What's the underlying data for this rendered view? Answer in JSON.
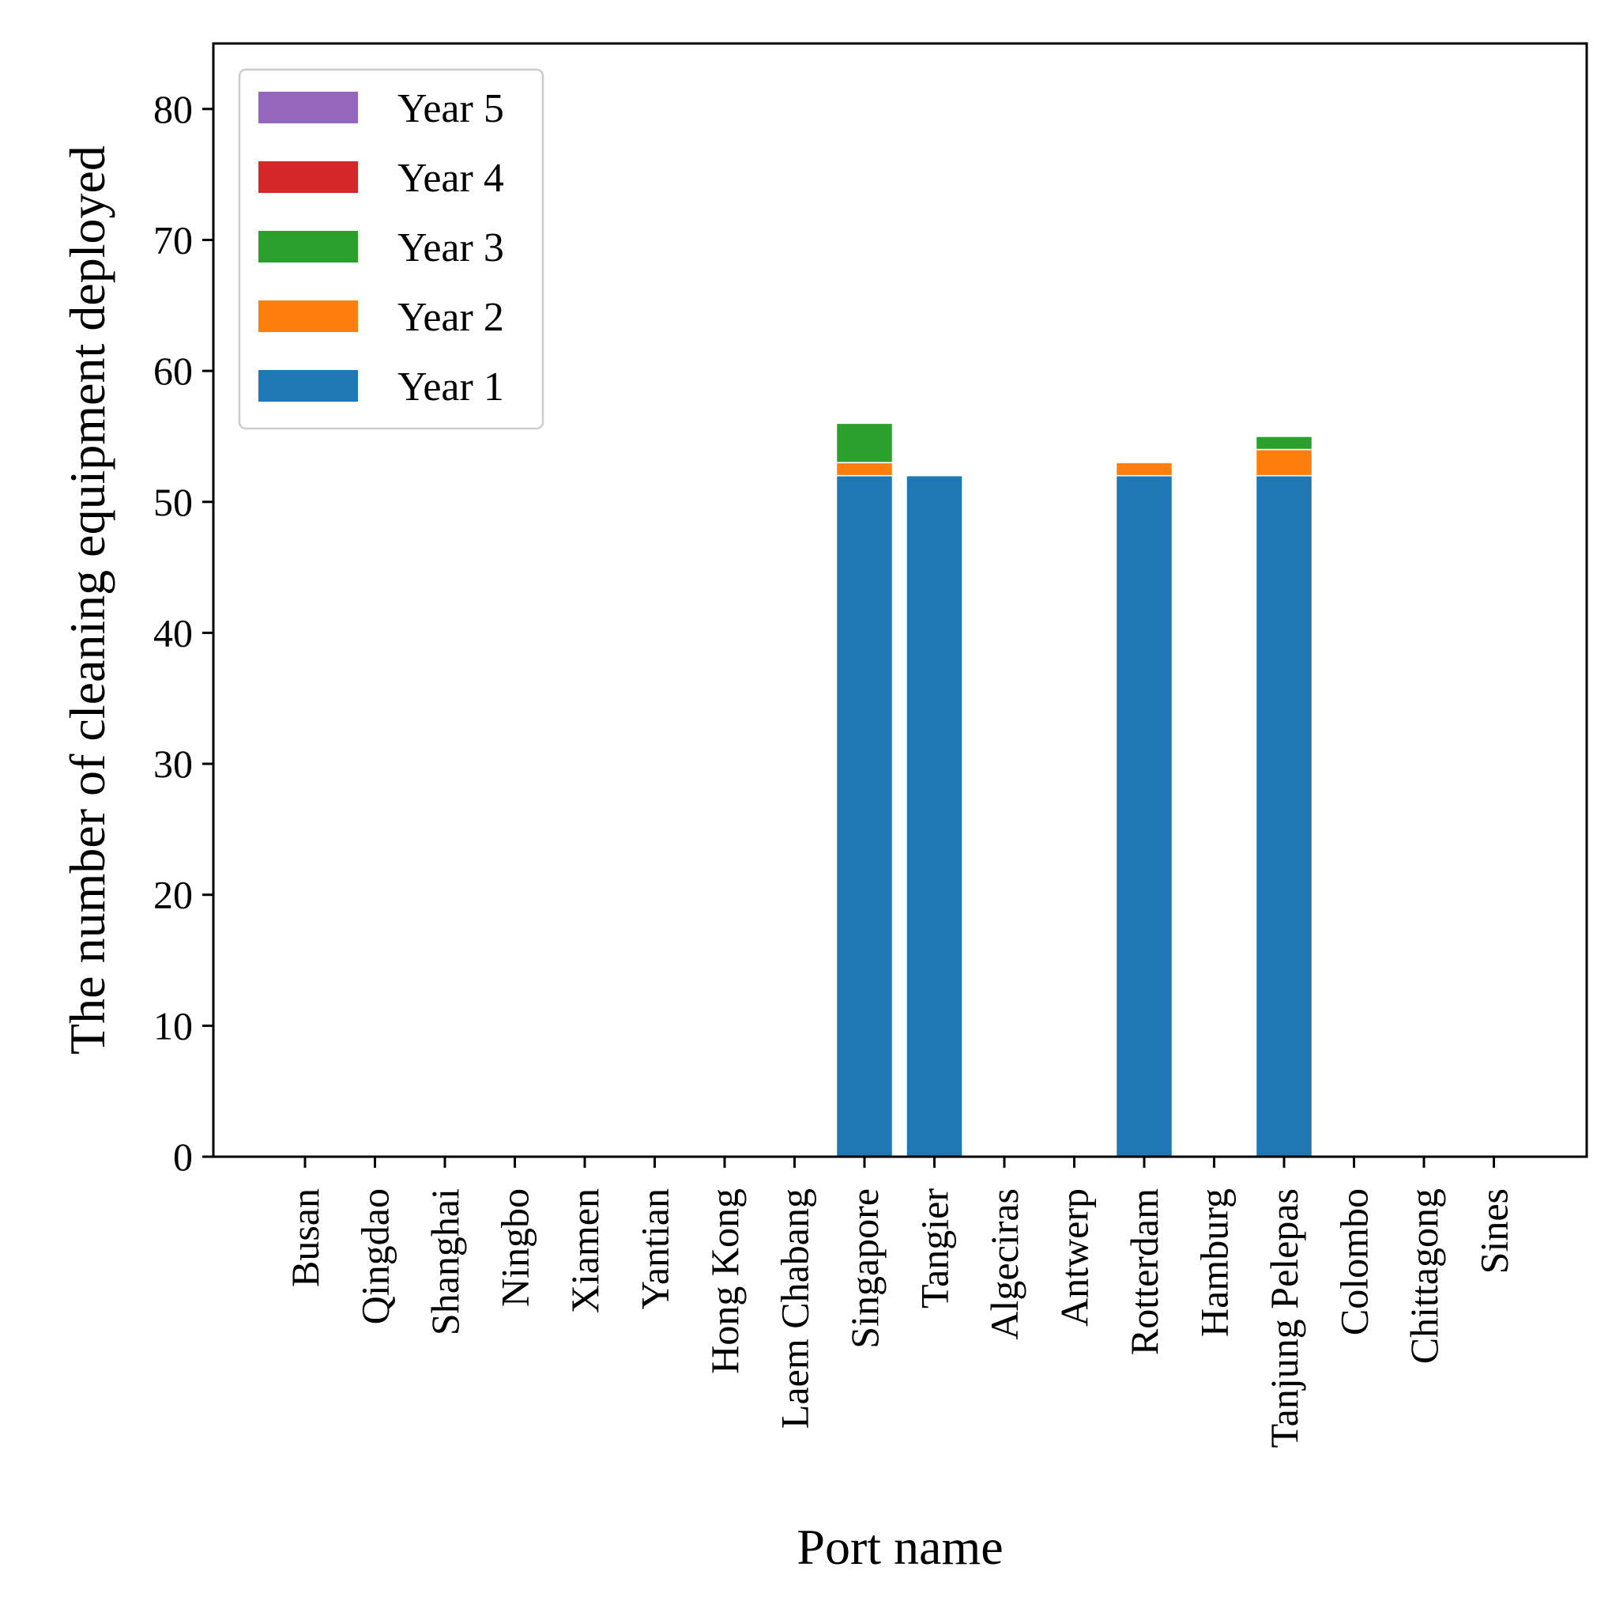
{
  "chart_data": {
    "type": "bar",
    "stacked": true,
    "xlabel": "Port name",
    "ylabel": "The number of cleaning equipment deployed",
    "ylim": [
      0,
      85
    ],
    "yticks": [
      0,
      10,
      20,
      30,
      40,
      50,
      60,
      70,
      80
    ],
    "grid": false,
    "legend_position": "top-left",
    "categories": [
      "Busan",
      "Qingdao",
      "Shanghai",
      "Ningbo",
      "Xiamen",
      "Yantian",
      "Hong Kong",
      "Laem Chabang",
      "Singapore",
      "Tangier",
      "Algeciras",
      "Antwerp",
      "Rotterdam",
      "Hamburg",
      "Tanjung Pelepas",
      "Colombo",
      "Chittagong",
      "Sines"
    ],
    "series": [
      {
        "name": "Year 1",
        "color": "#1f77b4",
        "values": [
          0,
          0,
          0,
          0,
          0,
          0,
          0,
          0,
          52,
          52,
          0,
          0,
          52,
          0,
          52,
          0,
          0,
          0
        ]
      },
      {
        "name": "Year 2",
        "color": "#ff7f0e",
        "values": [
          0,
          0,
          0,
          0,
          0,
          0,
          0,
          0,
          1,
          0,
          0,
          0,
          1,
          0,
          2,
          0,
          0,
          0
        ]
      },
      {
        "name": "Year 3",
        "color": "#2ca02c",
        "values": [
          0,
          0,
          0,
          0,
          0,
          0,
          0,
          0,
          3,
          0,
          0,
          0,
          0,
          0,
          1,
          0,
          0,
          0
        ]
      },
      {
        "name": "Year 4",
        "color": "#d62728",
        "values": [
          0,
          0,
          0,
          0,
          0,
          0,
          0,
          0,
          0,
          0,
          0,
          0,
          0,
          0,
          0,
          0,
          0,
          0
        ]
      },
      {
        "name": "Year 5",
        "color": "#9467bd",
        "values": [
          0,
          0,
          0,
          0,
          0,
          0,
          0,
          0,
          0,
          0,
          0,
          0,
          0,
          0,
          0,
          0,
          0,
          0
        ]
      }
    ]
  }
}
